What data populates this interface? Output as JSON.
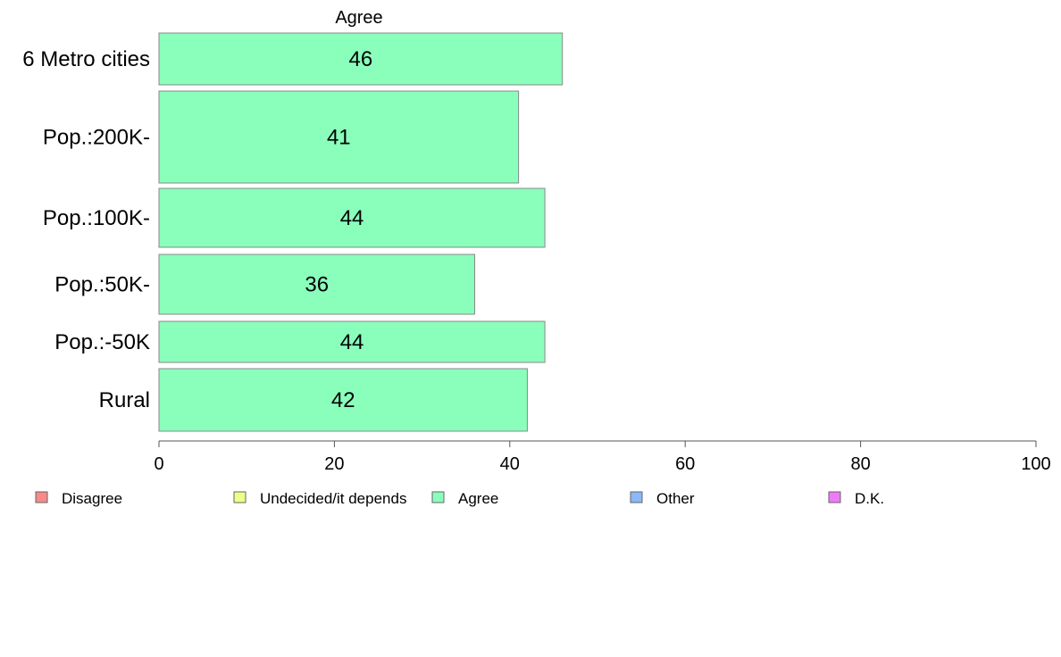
{
  "chart_data": {
    "type": "bar",
    "orientation": "horizontal",
    "title": "Agree",
    "categories": [
      "6 Metro cities",
      "Pop.:200K-",
      "Pop.:100K-",
      "Pop.:50K-",
      "Pop.:-50K",
      "Rural"
    ],
    "series": [
      {
        "name": "Agree",
        "values": [
          46,
          41,
          44,
          36,
          44,
          42
        ],
        "labels": [
          "46",
          "41",
          "44",
          "36",
          "44",
          "42"
        ],
        "color": "#8affbc"
      }
    ],
    "xlim": [
      0,
      100
    ],
    "xticks": [
      0,
      20,
      40,
      60,
      80,
      100
    ],
    "xtick_labels": [
      "0",
      "20",
      "40",
      "60",
      "80",
      "100"
    ],
    "xlabel": "",
    "ylabel": "",
    "grid": false,
    "legend": {
      "position": "bottom",
      "items": [
        {
          "label": "Disagree",
          "color": "#f88a8a"
        },
        {
          "label": "Undecided/it depends",
          "color": "#f0ff8a"
        },
        {
          "label": "Agree",
          "color": "#8affbc"
        },
        {
          "label": "Other",
          "color": "#8ab8f8"
        },
        {
          "label": "D.K.",
          "color": "#ee7af8"
        }
      ]
    }
  }
}
